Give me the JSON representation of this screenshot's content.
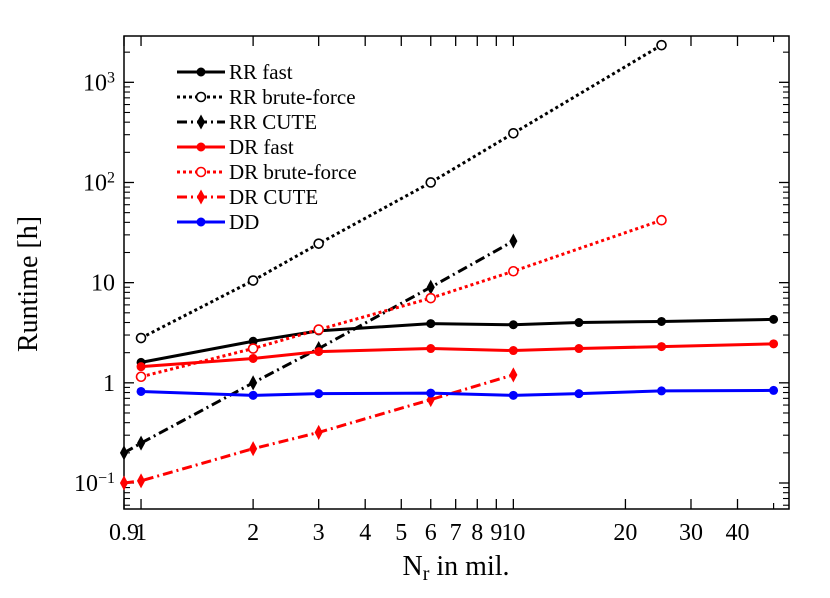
{
  "chart_data": {
    "type": "line",
    "x_scale": "log",
    "y_scale": "log",
    "xlabel": "N",
    "xlabel_sub": "r",
    "xlabel_rest": " in mil.",
    "ylabel": "Runtime [h]",
    "xlim": [
      0.9,
      55
    ],
    "ylim": [
      0.055,
      2900
    ],
    "grid": false,
    "legend_position": "top-left",
    "x_ticks": [
      {
        "v": 0.9,
        "label": "0.9"
      },
      {
        "v": 1,
        "label": "1"
      },
      {
        "v": 2,
        "label": "2"
      },
      {
        "v": 3,
        "label": "3"
      },
      {
        "v": 4,
        "label": "4"
      },
      {
        "v": 5,
        "label": "5"
      },
      {
        "v": 6,
        "label": "6"
      },
      {
        "v": 7,
        "label": "7"
      },
      {
        "v": 8,
        "label": "8"
      },
      {
        "v": 9,
        "label": "9"
      },
      {
        "v": 10,
        "label": "10"
      },
      {
        "v": 20,
        "label": "20"
      },
      {
        "v": 30,
        "label": "30"
      },
      {
        "v": 40,
        "label": "40"
      }
    ],
    "x_minor_ticks": [
      50
    ],
    "y_ticks": [
      {
        "v": 0.1,
        "base": "10",
        "exp": "−1"
      },
      {
        "v": 1,
        "base": "1",
        "exp": ""
      },
      {
        "v": 10,
        "base": "10",
        "exp": ""
      },
      {
        "v": 100,
        "base": "10",
        "exp": "2"
      },
      {
        "v": 1000,
        "base": "10",
        "exp": "3"
      }
    ],
    "series": [
      {
        "name": "RR fast",
        "color": "#000000",
        "dash": "solid",
        "marker": "circle-filled",
        "x": [
          1,
          2,
          3,
          6,
          10,
          15,
          25,
          50
        ],
        "y": [
          1.6,
          2.6,
          3.3,
          3.9,
          3.8,
          4.0,
          4.1,
          4.3
        ]
      },
      {
        "name": "RR brute-force",
        "color": "#000000",
        "dash": "dotted",
        "marker": "circle-open",
        "x": [
          1,
          2,
          3,
          6,
          10,
          25
        ],
        "y": [
          2.8,
          10.5,
          24.5,
          100,
          310,
          2350
        ]
      },
      {
        "name": "RR CUTE",
        "color": "#000000",
        "dash": "dashdot",
        "marker": "diamond-filled",
        "x": [
          0.9,
          1,
          2,
          3,
          6,
          10
        ],
        "y": [
          0.2,
          0.25,
          1.0,
          2.2,
          9.0,
          26
        ]
      },
      {
        "name": "DR fast",
        "color": "#ff0000",
        "dash": "solid",
        "marker": "circle-filled",
        "x": [
          1,
          2,
          3,
          6,
          10,
          15,
          25,
          50
        ],
        "y": [
          1.45,
          1.75,
          2.05,
          2.2,
          2.1,
          2.2,
          2.3,
          2.45
        ]
      },
      {
        "name": "DR brute-force",
        "color": "#ff0000",
        "dash": "dotted",
        "marker": "circle-open",
        "x": [
          1,
          2,
          3,
          6,
          10,
          25
        ],
        "y": [
          1.15,
          2.2,
          3.4,
          7.0,
          13,
          42
        ]
      },
      {
        "name": "DR CUTE",
        "color": "#ff0000",
        "dash": "dashdot",
        "marker": "diamond-filled",
        "x": [
          0.9,
          1,
          2,
          3,
          6,
          10
        ],
        "y": [
          0.1,
          0.105,
          0.22,
          0.32,
          0.68,
          1.2
        ]
      },
      {
        "name": "DD",
        "color": "#0000ff",
        "dash": "solid",
        "marker": "circle-filled",
        "x": [
          1,
          2,
          3,
          6,
          10,
          15,
          25,
          50
        ],
        "y": [
          0.82,
          0.75,
          0.78,
          0.79,
          0.75,
          0.78,
          0.83,
          0.84
        ]
      }
    ]
  }
}
